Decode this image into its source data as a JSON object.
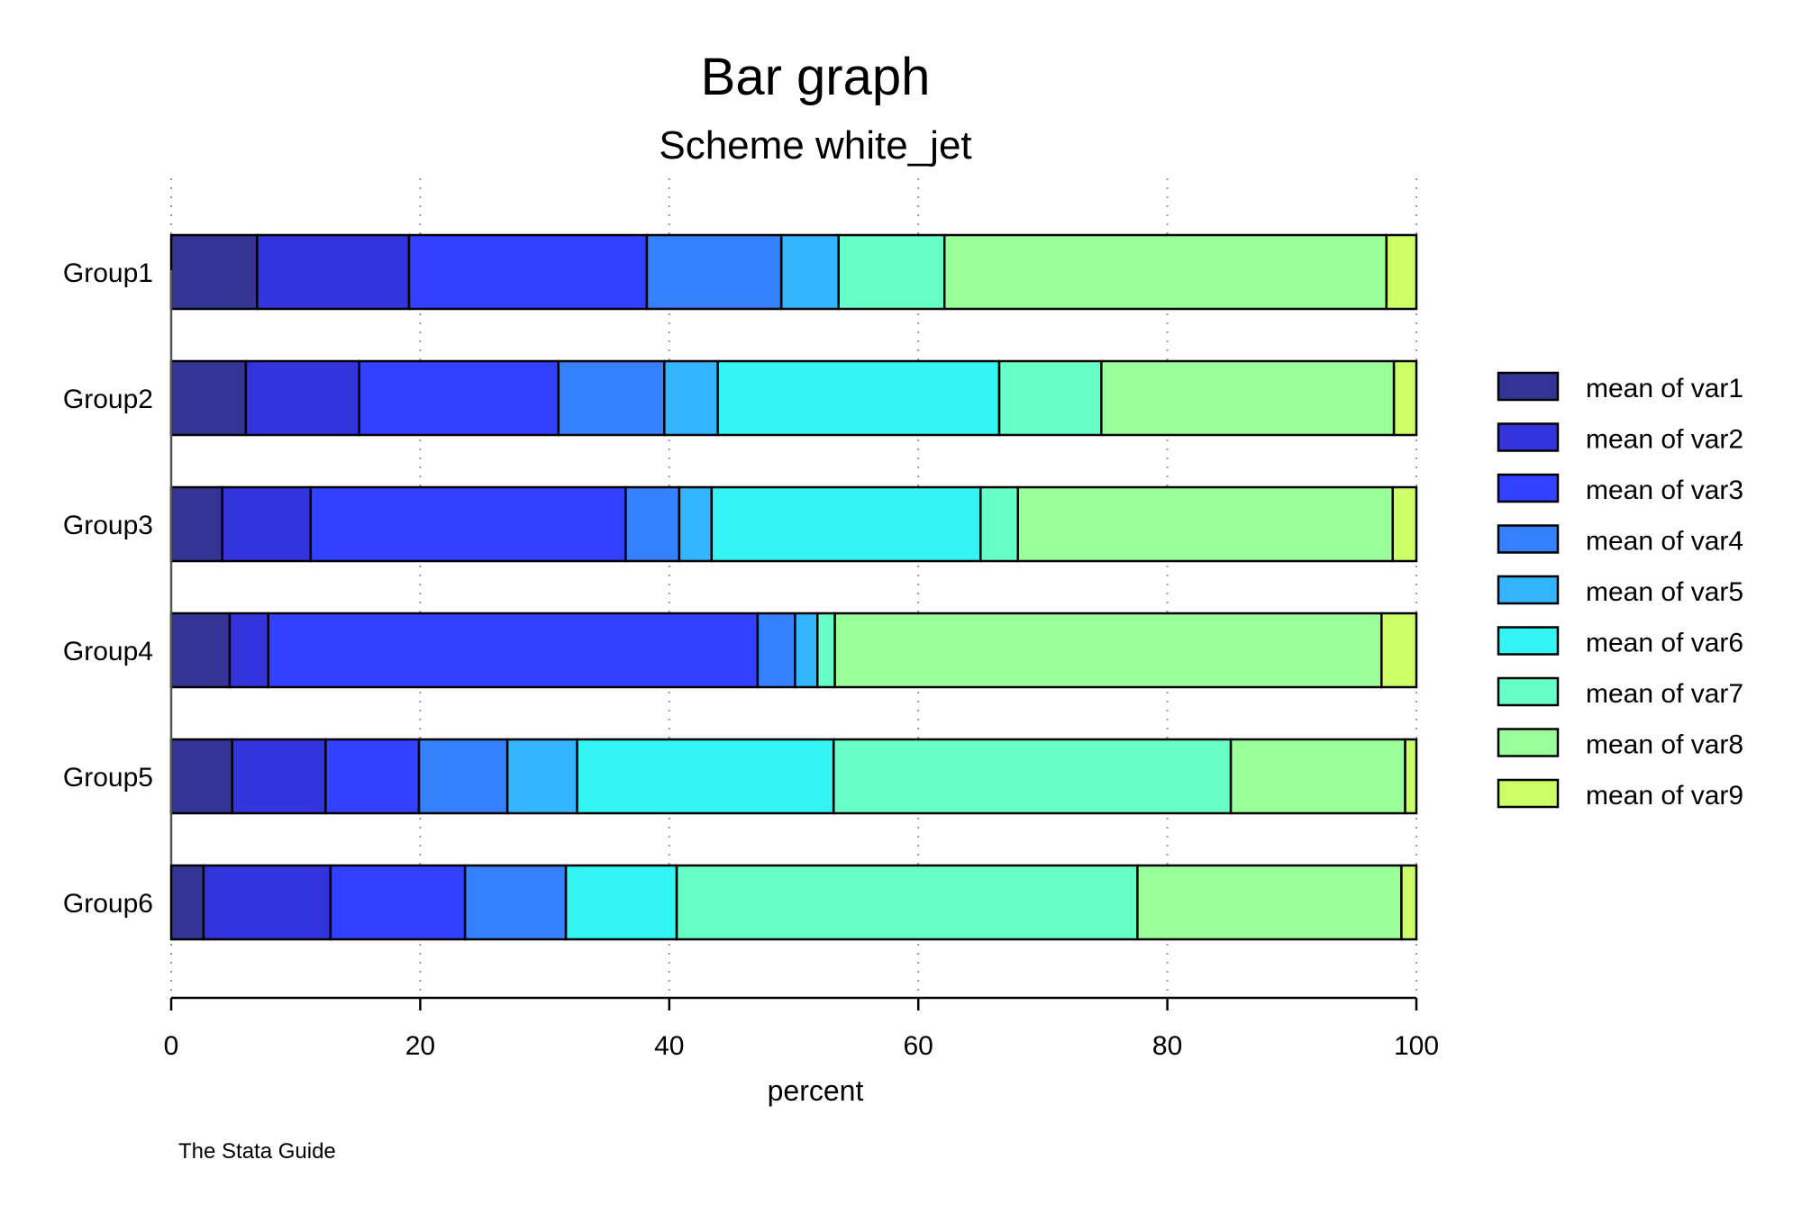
{
  "chart_data": {
    "type": "bar",
    "orientation": "horizontal",
    "stacked": true,
    "title": "Bar graph",
    "subtitle": "Scheme white_jet",
    "xlabel": "percent",
    "ylabel": "",
    "xlim": [
      0,
      100
    ],
    "xticks": [
      "0",
      "20",
      "40",
      "60",
      "80",
      "100"
    ],
    "grid": "vertical dotted",
    "legend_position": "right",
    "note": "The Stata Guide",
    "categories": [
      "Group1",
      "Group2",
      "Group3",
      "Group4",
      "Group5",
      "Group6"
    ],
    "series": [
      {
        "name": "mean of var1",
        "color": "#343494",
        "values": [
          6.9,
          6.0,
          4.1,
          4.7,
          4.9,
          2.6
        ]
      },
      {
        "name": "mean of var2",
        "color": "#3434DC",
        "values": [
          12.2,
          9.1,
          7.1,
          3.1,
          7.5,
          10.2
        ]
      },
      {
        "name": "mean of var3",
        "color": "#3240FF",
        "values": [
          19.1,
          16.0,
          25.3,
          39.3,
          7.5,
          10.8
        ]
      },
      {
        "name": "mean of var4",
        "color": "#3580FF",
        "values": [
          10.8,
          8.5,
          4.3,
          3.0,
          7.1,
          8.1
        ]
      },
      {
        "name": "mean of var5",
        "color": "#33B4FF",
        "values": [
          4.6,
          4.3,
          2.6,
          1.8,
          5.6,
          0.0
        ]
      },
      {
        "name": "mean of var6",
        "color": "#33F3F3",
        "values": [
          0.0,
          22.6,
          21.6,
          0.0,
          20.6,
          8.9
        ]
      },
      {
        "name": "mean of var7",
        "color": "#66FFC7",
        "values": [
          8.5,
          8.2,
          3.0,
          1.4,
          31.9,
          37.0
        ]
      },
      {
        "name": "mean of var8",
        "color": "#99FF99",
        "values": [
          35.5,
          23.5,
          30.1,
          43.9,
          14.0,
          21.2
        ]
      },
      {
        "name": "mean of var9",
        "color": "#CCFF66",
        "values": [
          2.4,
          1.8,
          1.9,
          2.8,
          0.9,
          1.2
        ]
      }
    ]
  }
}
